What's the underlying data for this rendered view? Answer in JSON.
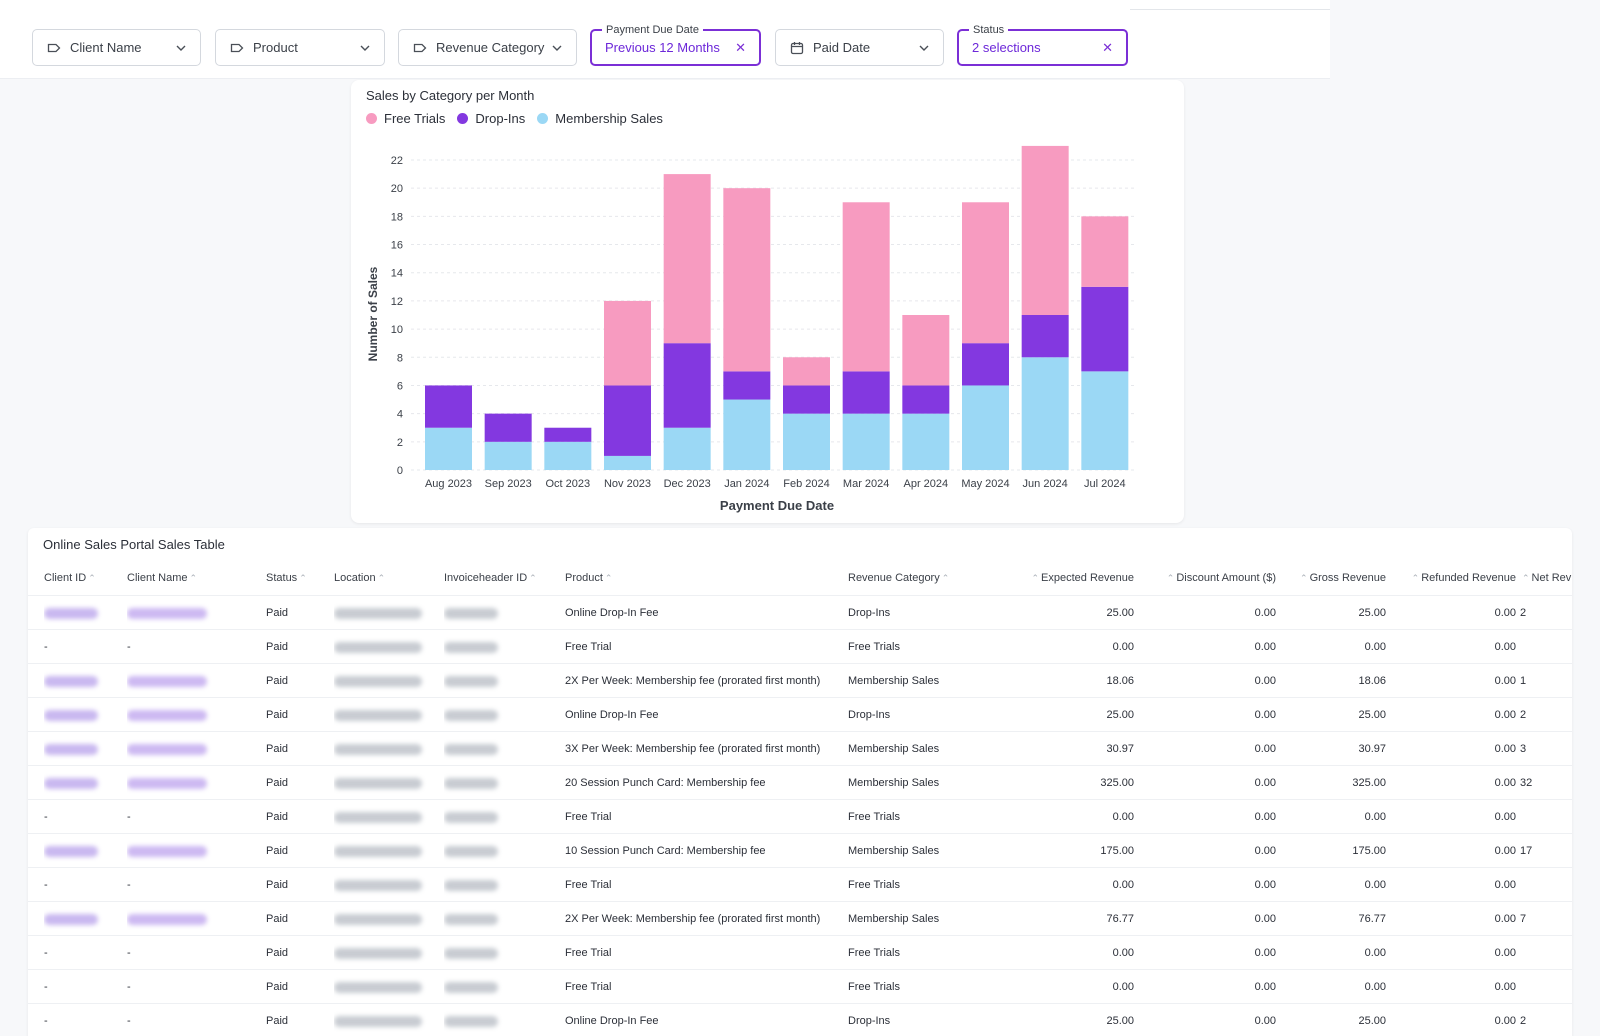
{
  "filters": [
    {
      "label": "Client Name",
      "icon": "tag-icon",
      "active": false
    },
    {
      "label": "Product",
      "icon": "tag-icon",
      "active": false
    },
    {
      "label": "Revenue Category",
      "icon": "tag-icon",
      "active": false
    },
    {
      "label": "Previous 12 Months",
      "legend": "Payment Due Date",
      "icon": "",
      "active": true
    },
    {
      "label": "Paid Date",
      "icon": "calendar-icon",
      "active": false
    },
    {
      "label": "2 selections",
      "legend": "Status",
      "icon": "",
      "active": true
    }
  ],
  "colors": {
    "accent": "#7b2fd6",
    "free_trials": "#f79bc0",
    "drop_ins": "#8338e0",
    "membership": "#9bd8f5"
  },
  "chart_data": {
    "type": "bar",
    "stacked": true,
    "title": "Sales by Category per Month",
    "xlabel": "Payment Due Date",
    "ylabel": "Number of Sales",
    "ylim": [
      0,
      22
    ],
    "yticks": [
      0,
      2,
      4,
      6,
      8,
      10,
      12,
      14,
      16,
      18,
      20,
      22
    ],
    "legend_position": "top-left",
    "grid": true,
    "categories": [
      "Aug 2023",
      "Sep 2023",
      "Oct 2023",
      "Nov 2023",
      "Dec 2023",
      "Jan 2024",
      "Feb 2024",
      "Mar 2024",
      "Apr 2024",
      "May 2024",
      "Jun 2024",
      "Jul 2024"
    ],
    "series": [
      {
        "name": "Membership Sales",
        "color": "#9bd8f5",
        "values": [
          3,
          2,
          2,
          1,
          3,
          5,
          4,
          4,
          4,
          6,
          8,
          7
        ]
      },
      {
        "name": "Drop-Ins",
        "color": "#8338e0",
        "values": [
          3,
          2,
          1,
          5,
          6,
          2,
          2,
          3,
          2,
          3,
          3,
          6
        ]
      },
      {
        "name": "Free Trials",
        "color": "#f79bc0",
        "values": [
          0,
          0,
          0,
          6,
          12,
          13,
          2,
          12,
          5,
          10,
          12,
          5
        ]
      }
    ],
    "legend_order": [
      "Free Trials",
      "Drop-Ins",
      "Membership Sales"
    ]
  },
  "table": {
    "title": "Online Sales Portal Sales Table",
    "columns": [
      "Client ID",
      "Client Name",
      "Status",
      "Location",
      "Invoiceheader ID",
      "Product",
      "Revenue Category",
      "Expected Revenue",
      "Discount Amount ($)",
      "Gross Revenue",
      "Refunded Revenue",
      "Net Rev"
    ],
    "rows": [
      {
        "hidden": true,
        "status": "Paid",
        "product": "Online Drop-In Fee",
        "category": "Drop-Ins",
        "expected": "25.00",
        "discount": "0.00",
        "gross": "25.00",
        "refunded": "0.00",
        "net": "2"
      },
      {
        "hidden": false,
        "client_id": "-",
        "client_name": "-",
        "status": "Paid",
        "product": "Free Trial",
        "category": "Free Trials",
        "expected": "0.00",
        "discount": "0.00",
        "gross": "0.00",
        "refunded": "0.00",
        "net": ""
      },
      {
        "hidden": true,
        "status": "Paid",
        "product": "2X Per Week: Membership fee (prorated first month)",
        "category": "Membership Sales",
        "expected": "18.06",
        "discount": "0.00",
        "gross": "18.06",
        "refunded": "0.00",
        "net": "1"
      },
      {
        "hidden": true,
        "status": "Paid",
        "product": "Online Drop-In Fee",
        "category": "Drop-Ins",
        "expected": "25.00",
        "discount": "0.00",
        "gross": "25.00",
        "refunded": "0.00",
        "net": "2"
      },
      {
        "hidden": true,
        "status": "Paid",
        "product": "3X Per Week: Membership fee (prorated first month)",
        "category": "Membership Sales",
        "expected": "30.97",
        "discount": "0.00",
        "gross": "30.97",
        "refunded": "0.00",
        "net": "3"
      },
      {
        "hidden": true,
        "status": "Paid",
        "product": "20 Session Punch Card: Membership fee",
        "category": "Membership Sales",
        "expected": "325.00",
        "discount": "0.00",
        "gross": "325.00",
        "refunded": "0.00",
        "net": "32"
      },
      {
        "hidden": false,
        "client_id": "-",
        "client_name": "-",
        "status": "Paid",
        "product": "Free Trial",
        "category": "Free Trials",
        "expected": "0.00",
        "discount": "0.00",
        "gross": "0.00",
        "refunded": "0.00",
        "net": ""
      },
      {
        "hidden": true,
        "status": "Paid",
        "product": "10 Session Punch Card: Membership fee",
        "category": "Membership Sales",
        "expected": "175.00",
        "discount": "0.00",
        "gross": "175.00",
        "refunded": "0.00",
        "net": "17"
      },
      {
        "hidden": false,
        "client_id": "-",
        "client_name": "-",
        "status": "Paid",
        "product": "Free Trial",
        "category": "Free Trials",
        "expected": "0.00",
        "discount": "0.00",
        "gross": "0.00",
        "refunded": "0.00",
        "net": ""
      },
      {
        "hidden": true,
        "status": "Paid",
        "product": "2X Per Week: Membership fee (prorated first month)",
        "category": "Membership Sales",
        "expected": "76.77",
        "discount": "0.00",
        "gross": "76.77",
        "refunded": "0.00",
        "net": "7"
      },
      {
        "hidden": false,
        "client_id": "-",
        "client_name": "-",
        "status": "Paid",
        "product": "Free Trial",
        "category": "Free Trials",
        "expected": "0.00",
        "discount": "0.00",
        "gross": "0.00",
        "refunded": "0.00",
        "net": ""
      },
      {
        "hidden": false,
        "client_id": "-",
        "client_name": "-",
        "status": "Paid",
        "product": "Free Trial",
        "category": "Free Trials",
        "expected": "0.00",
        "discount": "0.00",
        "gross": "0.00",
        "refunded": "0.00",
        "net": ""
      },
      {
        "hidden": false,
        "client_id": "-",
        "client_name": "-",
        "status": "Paid",
        "product": "Online Drop-In Fee",
        "category": "Drop-Ins",
        "expected": "25.00",
        "discount": "0.00",
        "gross": "25.00",
        "refunded": "0.00",
        "net": "2"
      }
    ]
  }
}
